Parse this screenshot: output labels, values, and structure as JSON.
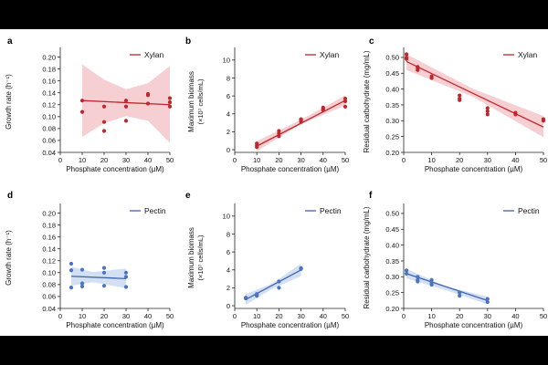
{
  "colors": {
    "xylan_line": "#c0272d",
    "xylan_point": "#c0272d",
    "xylan_band": "#f3c7ca",
    "pectin_line": "#3f64ad",
    "pectin_point": "#4a73c2",
    "pectin_band": "#cbd9f0",
    "axis": "#222222",
    "background_band": "#000000"
  },
  "chart_data": [
    {
      "panel": "a",
      "type": "scatter",
      "substrate": "Xylan",
      "legend": "Xylan",
      "legend_position": "top-right",
      "xlabel": "Phosphate concentration (µM)",
      "ylabel": "Growth rate (h⁻¹)",
      "xlim": [
        0,
        50
      ],
      "ylim": [
        0.04,
        0.21
      ],
      "xticks": [
        0,
        10,
        20,
        30,
        40,
        50
      ],
      "xtick_labels": [
        "0",
        "10",
        "20",
        "30",
        "40",
        "50"
      ],
      "yticks": [
        0.04,
        0.06,
        0.08,
        0.1,
        0.12,
        0.14,
        0.16,
        0.18,
        0.2
      ],
      "ytick_labels": [
        "0.04",
        "0.06",
        "0.08",
        "0.10",
        "0.12",
        "0.14",
        "0.16",
        "0.18",
        "0.20"
      ],
      "points": [
        [
          10,
          0.127
        ],
        [
          10,
          0.108
        ],
        [
          20,
          0.117
        ],
        [
          20,
          0.091
        ],
        [
          20,
          0.076
        ],
        [
          30,
          0.127
        ],
        [
          30,
          0.117
        ],
        [
          30,
          0.093
        ],
        [
          40,
          0.136
        ],
        [
          40,
          0.138
        ],
        [
          40,
          0.122
        ],
        [
          50,
          0.131
        ],
        [
          50,
          0.124
        ],
        [
          50,
          0.117
        ]
      ],
      "fit_line": [
        [
          10,
          0.127
        ],
        [
          50,
          0.12
        ]
      ],
      "ci_upper": [
        [
          10,
          0.188
        ],
        [
          20,
          0.162
        ],
        [
          30,
          0.146
        ],
        [
          40,
          0.156
        ],
        [
          50,
          0.185
        ]
      ],
      "ci_lower": [
        [
          10,
          0.066
        ],
        [
          20,
          0.089
        ],
        [
          30,
          0.101
        ],
        [
          40,
          0.093
        ],
        [
          50,
          0.056
        ]
      ]
    },
    {
      "panel": "b",
      "type": "scatter",
      "substrate": "Xylan",
      "legend": "Xylan",
      "legend_position": "top-right",
      "xlabel": "Phosphate concentration (µM)",
      "ylabel": "Maximum biomass",
      "ylabel2": "(×10⁷ cells/mL)",
      "xlim": [
        0,
        50
      ],
      "ylim": [
        -0.3,
        11
      ],
      "xticks": [
        0,
        10,
        20,
        30,
        40,
        50
      ],
      "xtick_labels": [
        "0",
        "10",
        "20",
        "30",
        "40",
        "50"
      ],
      "yticks": [
        0,
        2,
        4,
        6,
        8,
        10
      ],
      "ytick_labels": [
        "0",
        "2",
        "4",
        "6",
        "8",
        "10"
      ],
      "points": [
        [
          10,
          0.3
        ],
        [
          10,
          0.5
        ],
        [
          10,
          0.7
        ],
        [
          20,
          1.5
        ],
        [
          20,
          1.8
        ],
        [
          20,
          2.1
        ],
        [
          30,
          3.1
        ],
        [
          30,
          3.3
        ],
        [
          30,
          3.4
        ],
        [
          40,
          4.4
        ],
        [
          40,
          4.6
        ],
        [
          40,
          4.7
        ],
        [
          50,
          4.8
        ],
        [
          50,
          5.4
        ],
        [
          50,
          5.7
        ]
      ],
      "fit_line": [
        [
          10,
          0.4
        ],
        [
          50,
          5.5
        ]
      ],
      "ci_upper": [
        [
          10,
          0.95
        ],
        [
          30,
          3.35
        ],
        [
          50,
          6.05
        ]
      ],
      "ci_lower": [
        [
          10,
          -0.15
        ],
        [
          30,
          2.85
        ],
        [
          50,
          4.95
        ]
      ]
    },
    {
      "panel": "c",
      "type": "scatter",
      "substrate": "Xylan",
      "legend": "Xylan",
      "legend_position": "top-right",
      "xlabel": "Phosphate concentration (µM)",
      "ylabel": "Residual carbohydrate (mg/mL)",
      "xlim": [
        0,
        50
      ],
      "ylim": [
        0.2,
        0.52
      ],
      "xticks": [
        0,
        10,
        20,
        30,
        40,
        50
      ],
      "xtick_labels": [
        "0",
        "10",
        "20",
        "30",
        "40",
        "50"
      ],
      "yticks": [
        0.2,
        0.25,
        0.3,
        0.35,
        0.4,
        0.45,
        0.5
      ],
      "ytick_labels": [
        "0.20",
        "0.25",
        "0.30",
        "0.35",
        "0.40",
        "0.45",
        "0.50"
      ],
      "points": [
        [
          1,
          0.51
        ],
        [
          1,
          0.5
        ],
        [
          1,
          0.495
        ],
        [
          5,
          0.47
        ],
        [
          5,
          0.465
        ],
        [
          5,
          0.46
        ],
        [
          10,
          0.44
        ],
        [
          10,
          0.435
        ],
        [
          20,
          0.38
        ],
        [
          20,
          0.37
        ],
        [
          20,
          0.365
        ],
        [
          30,
          0.34
        ],
        [
          30,
          0.33
        ],
        [
          30,
          0.32
        ],
        [
          40,
          0.325
        ],
        [
          40,
          0.32
        ],
        [
          50,
          0.305
        ],
        [
          50,
          0.3
        ]
      ],
      "fit_line": [
        [
          1,
          0.487
        ],
        [
          50,
          0.28
        ]
      ],
      "ci_upper": [
        [
          1,
          0.51
        ],
        [
          25,
          0.4
        ],
        [
          50,
          0.315
        ]
      ],
      "ci_lower": [
        [
          1,
          0.46
        ],
        [
          25,
          0.375
        ],
        [
          50,
          0.248
        ]
      ]
    },
    {
      "panel": "d",
      "type": "scatter",
      "substrate": "Pectin",
      "legend": "Pectin",
      "legend_position": "top-right",
      "xlabel": "Phosphate concentration (µM)",
      "ylabel": "Growth rate (h⁻¹)",
      "xlim": [
        0,
        50
      ],
      "ylim": [
        0.04,
        0.21
      ],
      "xticks": [
        0,
        10,
        20,
        30,
        40,
        50
      ],
      "xtick_labels": [
        "0",
        "10",
        "20",
        "30",
        "40",
        "50"
      ],
      "yticks": [
        0.04,
        0.06,
        0.08,
        0.1,
        0.12,
        0.14,
        0.16,
        0.18,
        0.2
      ],
      "ytick_labels": [
        "0.04",
        "0.06",
        "0.08",
        "0.10",
        "0.12",
        "0.14",
        "0.16",
        "0.18",
        "0.20"
      ],
      "points": [
        [
          5,
          0.115
        ],
        [
          5,
          0.104
        ],
        [
          5,
          0.075
        ],
        [
          10,
          0.105
        ],
        [
          10,
          0.082
        ],
        [
          10,
          0.077
        ],
        [
          20,
          0.108
        ],
        [
          20,
          0.1
        ],
        [
          20,
          0.078
        ],
        [
          30,
          0.1
        ],
        [
          30,
          0.093
        ],
        [
          30,
          0.076
        ]
      ],
      "fit_line": [
        [
          5,
          0.094
        ],
        [
          30,
          0.09
        ]
      ],
      "ci_upper": [
        [
          5,
          0.11
        ],
        [
          15,
          0.101
        ],
        [
          30,
          0.107
        ]
      ],
      "ci_lower": [
        [
          5,
          0.078
        ],
        [
          15,
          0.084
        ],
        [
          30,
          0.074
        ]
      ]
    },
    {
      "panel": "e",
      "type": "scatter",
      "substrate": "Pectin",
      "legend": "Pectin",
      "legend_position": "top-right",
      "xlabel": "Phosphate concentration (µM)",
      "ylabel": "Maximum biomass",
      "ylabel2": "(×10⁷ cells/mL)",
      "xlim": [
        0,
        50
      ],
      "ylim": [
        -0.3,
        11
      ],
      "xticks": [
        0,
        10,
        20,
        30,
        40,
        50
      ],
      "xtick_labels": [
        "0",
        "10",
        "20",
        "30",
        "40",
        "50"
      ],
      "yticks": [
        0,
        2,
        4,
        6,
        8,
        10
      ],
      "ytick_labels": [
        "0",
        "2",
        "4",
        "6",
        "8",
        "10"
      ],
      "points": [
        [
          5,
          0.8
        ],
        [
          5,
          0.9
        ],
        [
          10,
          1.1
        ],
        [
          10,
          1.3
        ],
        [
          20,
          2.0
        ],
        [
          20,
          2.7
        ],
        [
          30,
          4.1
        ],
        [
          30,
          4.2
        ]
      ],
      "fit_line": [
        [
          5,
          0.7
        ],
        [
          30,
          4.0
        ]
      ],
      "ci_upper": [
        [
          5,
          1.3
        ],
        [
          17,
          2.5
        ],
        [
          30,
          4.7
        ]
      ],
      "ci_lower": [
        [
          5,
          0.1
        ],
        [
          17,
          1.9
        ],
        [
          30,
          3.3
        ]
      ]
    },
    {
      "panel": "f",
      "type": "scatter",
      "substrate": "Pectin",
      "legend": "Pectin",
      "legend_position": "top-right",
      "xlabel": "Phosphate concentration (µM)",
      "ylabel": "Residual carbohydrate (mg/mL)",
      "xlim": [
        0,
        50
      ],
      "ylim": [
        0.2,
        0.52
      ],
      "xticks": [
        0,
        10,
        20,
        30,
        40,
        50
      ],
      "xtick_labels": [
        "0",
        "10",
        "20",
        "30",
        "40",
        "50"
      ],
      "yticks": [
        0.2,
        0.25,
        0.3,
        0.35,
        0.4,
        0.45,
        0.5
      ],
      "ytick_labels": [
        "0.20",
        "0.25",
        "0.30",
        "0.35",
        "0.40",
        "0.45",
        "0.50"
      ],
      "points": [
        [
          1,
          0.32
        ],
        [
          1,
          0.31
        ],
        [
          5,
          0.3
        ],
        [
          5,
          0.29
        ],
        [
          5,
          0.285
        ],
        [
          10,
          0.29
        ],
        [
          10,
          0.28
        ],
        [
          10,
          0.275
        ],
        [
          20,
          0.25
        ],
        [
          20,
          0.24
        ],
        [
          30,
          0.23
        ],
        [
          30,
          0.22
        ]
      ],
      "fit_line": [
        [
          1,
          0.31
        ],
        [
          30,
          0.225
        ]
      ],
      "ci_upper": [
        [
          1,
          0.325
        ],
        [
          15,
          0.27
        ],
        [
          30,
          0.237
        ]
      ],
      "ci_lower": [
        [
          1,
          0.295
        ],
        [
          15,
          0.258
        ],
        [
          30,
          0.213
        ]
      ]
    }
  ]
}
